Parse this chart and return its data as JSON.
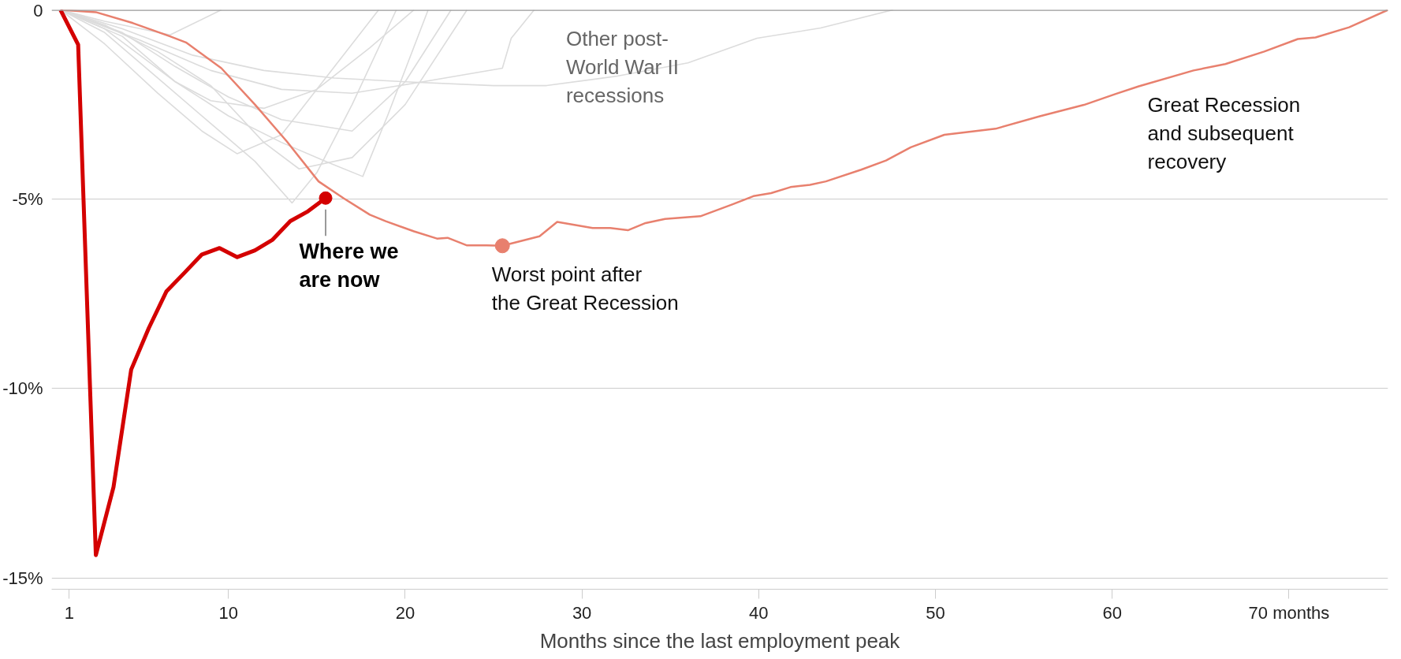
{
  "chart_data": {
    "type": "line",
    "xlabel": "Months since the last employment peak",
    "xlim": [
      0,
      75.6
    ],
    "ylim": [
      -15.3,
      0
    ],
    "xticks": [
      1,
      10,
      20,
      30,
      40,
      50,
      60,
      {
        "value": 70,
        "label": "70 months"
      }
    ],
    "yticks": [
      0,
      {
        "value": -5,
        "label": "-5%"
      },
      {
        "value": -10,
        "label": "-10%"
      },
      {
        "value": -15,
        "label": "-15%"
      }
    ],
    "grid": "y",
    "marker": "none",
    "line_style": "solid",
    "ref_lines": [
      {
        "axis": "y",
        "value": 0,
        "color": "#999999"
      }
    ],
    "series": [
      {
        "name": "Other post-World War II recessions",
        "color": "#dcdcdc",
        "x": [
          0.5,
          4,
          8,
          12,
          16,
          20,
          25,
          28,
          32,
          36,
          39.9,
          43.5,
          47.6
        ],
        "values": [
          0,
          -0.5,
          -1.2,
          -1.6,
          -1.8,
          -1.9,
          -2.0,
          -2.0,
          -1.75,
          -1.4,
          -0.75,
          -0.48,
          0
        ]
      },
      {
        "color": "#dcdcdc",
        "x": [
          0.5,
          3,
          6.7,
          9.6
        ],
        "values": [
          0,
          -0.3,
          -0.66,
          0
        ]
      },
      {
        "color": "#dcdcdc",
        "x": [
          0.5,
          5,
          9,
          13,
          17,
          21,
          25.5,
          26,
          27.3
        ],
        "values": [
          0,
          -0.8,
          -1.6,
          -2.1,
          -2.2,
          -1.9,
          -1.54,
          -0.75,
          0
        ]
      },
      {
        "color": "#dcdcdc",
        "x": [
          0.5,
          3,
          6,
          8.5,
          10.5,
          13,
          16,
          18.5
        ],
        "values": [
          0,
          -0.9,
          -2.2,
          -3.2,
          -3.8,
          -3.3,
          -1.5,
          0
        ]
      },
      {
        "color": "#dcdcdc",
        "x": [
          0.5,
          3,
          6,
          9,
          11.5,
          13.6,
          15,
          17,
          19.5
        ],
        "values": [
          0,
          -0.6,
          -1.8,
          -3.0,
          -4.0,
          -5.1,
          -4.3,
          -2.5,
          0
        ]
      },
      {
        "color": "#dcdcdc",
        "x": [
          0.5,
          4,
          7,
          10,
          13,
          15.5,
          17.6,
          19,
          21.3
        ],
        "values": [
          0,
          -0.7,
          -1.9,
          -2.8,
          -3.5,
          -4.0,
          -4.4,
          -2.8,
          0
        ]
      },
      {
        "color": "#dcdcdc",
        "x": [
          0.5,
          3,
          5,
          7,
          9,
          12,
          15,
          18,
          20.5
        ],
        "values": [
          0,
          -0.5,
          -1.2,
          -1.9,
          -2.4,
          -2.6,
          -2.1,
          -1.0,
          0
        ]
      },
      {
        "color": "#dcdcdc",
        "x": [
          0.5,
          4,
          7,
          10,
          13,
          17,
          20,
          22.6
        ],
        "values": [
          0,
          -0.6,
          -1.5,
          -2.3,
          -2.9,
          -3.2,
          -1.9,
          0
        ]
      },
      {
        "color": "#dcdcdc",
        "x": [
          0.5,
          3,
          6,
          9,
          12,
          14,
          17,
          20,
          23.5
        ],
        "values": [
          0,
          -0.4,
          -1.1,
          -2.0,
          -3.5,
          -4.2,
          -3.9,
          -2.5,
          0
        ]
      },
      {
        "name": "Great Recession and subsequent recovery",
        "color": "#e8806e",
        "x": [
          0.5,
          2.5,
          4.6,
          6.7,
          7.6,
          9.6,
          11.5,
          13.3,
          15.1,
          16.5,
          18,
          18.9,
          20.5,
          21.8,
          22.4,
          23.5,
          24.6,
          25.5,
          27.6,
          28.6,
          30.6,
          31.6,
          32.6,
          33.6,
          34.7,
          36.7,
          38.5,
          39.7,
          40.7,
          41.8,
          42.9,
          43.8,
          45.8,
          47.2,
          48.6,
          50.5,
          53.4,
          55.9,
          58.4,
          60.2,
          61.5,
          64.6,
          66.4,
          68.6,
          70.5,
          71.5,
          73.4,
          75.6
        ],
        "values": [
          0,
          -0.06,
          -0.35,
          -0.7,
          -0.86,
          -1.54,
          -2.5,
          -3.47,
          -4.53,
          -4.97,
          -5.41,
          -5.58,
          -5.85,
          -6.04,
          -6.02,
          -6.22,
          -6.22,
          -6.23,
          -5.98,
          -5.6,
          -5.76,
          -5.76,
          -5.82,
          -5.63,
          -5.52,
          -5.45,
          -5.14,
          -4.92,
          -4.84,
          -4.68,
          -4.62,
          -4.53,
          -4.22,
          -3.98,
          -3.63,
          -3.3,
          -3.14,
          -2.81,
          -2.51,
          -2.22,
          -2.02,
          -1.6,
          -1.43,
          -1.1,
          -0.77,
          -0.73,
          -0.46,
          0
        ]
      },
      {
        "color": "#d40000",
        "x": [
          0.5,
          1.5,
          2.5,
          3.5,
          4.5,
          5.5,
          6.5,
          7.5,
          8.5,
          9.5,
          10.5,
          11.5,
          12.5,
          13.5,
          14.5,
          15.5
        ],
        "values": [
          0,
          -0.92,
          -14.4,
          -12.6,
          -9.5,
          -8.4,
          -7.43,
          -6.95,
          -6.46,
          -6.29,
          -6.53,
          -6.35,
          -6.07,
          -5.58,
          -5.32,
          -4.97
        ]
      }
    ],
    "annotations": [
      {
        "text": "Where we\nare now",
        "x": 15.5,
        "y": -4.97
      },
      {
        "text": "Worst point after\nthe Great Recession",
        "x": 25.5,
        "y": -6.23
      }
    ]
  }
}
